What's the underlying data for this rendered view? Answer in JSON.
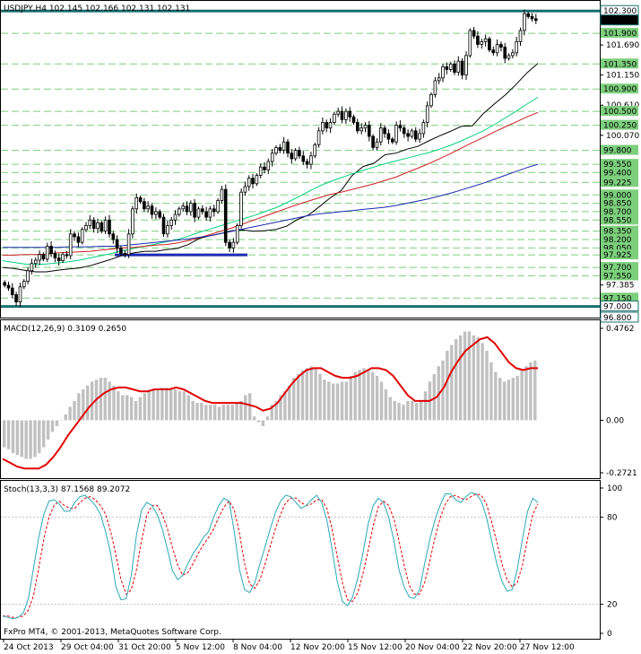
{
  "chart_data": [
    {
      "type": "candlestick",
      "header": "USDJPY,H4  102.145 102.166 102.131 102.131",
      "symbol": "USDJPY",
      "timeframe": "H4",
      "ohlc": {
        "open": 102.145,
        "high": 102.166,
        "low": 102.131,
        "close": 102.131
      },
      "ylim": [
        96.8,
        102.4
      ],
      "y_tick_labels": [
        {
          "value": 102.3,
          "text": "102.300",
          "style": "box"
        },
        {
          "value": 102.131,
          "text": "102.131",
          "style": "current"
        },
        {
          "value": 101.9,
          "text": "101.900",
          "style": "level"
        },
        {
          "value": 101.69,
          "text": "101.690",
          "style": "plain"
        },
        {
          "value": 101.35,
          "text": "101.350",
          "style": "level"
        },
        {
          "value": 101.15,
          "text": "101.150",
          "style": "plain"
        },
        {
          "value": 100.9,
          "text": "100.900",
          "style": "level"
        },
        {
          "value": 100.61,
          "text": "100.610",
          "style": "plain"
        },
        {
          "value": 100.5,
          "text": "100.500",
          "style": "level"
        },
        {
          "value": 100.25,
          "text": "100.250",
          "style": "level"
        },
        {
          "value": 100.07,
          "text": "100.070",
          "style": "plain"
        },
        {
          "value": 99.8,
          "text": "99.800",
          "style": "level"
        },
        {
          "value": 99.55,
          "text": "99.550",
          "style": "level"
        },
        {
          "value": 99.4,
          "text": "99.400",
          "style": "level"
        },
        {
          "value": 99.225,
          "text": "99.225",
          "style": "level"
        },
        {
          "value": 99.0,
          "text": "99.000",
          "style": "level"
        },
        {
          "value": 98.85,
          "text": "98.850",
          "style": "level"
        },
        {
          "value": 98.7,
          "text": "98.700",
          "style": "level"
        },
        {
          "value": 98.55,
          "text": "98.550",
          "style": "level"
        },
        {
          "value": 98.35,
          "text": "98.350",
          "style": "level"
        },
        {
          "value": 98.2,
          "text": "98.200",
          "style": "level"
        },
        {
          "value": 98.05,
          "text": "98.050",
          "style": "level"
        },
        {
          "value": 97.925,
          "text": "97.925",
          "style": "level"
        },
        {
          "value": 97.7,
          "text": "97.700",
          "style": "level"
        },
        {
          "value": 97.55,
          "text": "97.550",
          "style": "level"
        },
        {
          "value": 97.385,
          "text": "97.385",
          "style": "plain"
        },
        {
          "value": 97.15,
          "text": "97.150",
          "style": "level"
        },
        {
          "value": 97.0,
          "text": "97.000",
          "style": "box"
        },
        {
          "value": 96.8,
          "text": "96.800",
          "style": "box"
        }
      ],
      "dashed_levels": [
        101.9,
        101.35,
        100.9,
        100.5,
        100.25,
        99.8,
        99.55,
        99.4,
        99.225,
        99.0,
        98.85,
        98.7,
        98.55,
        98.35,
        98.2,
        98.05,
        97.925,
        97.7,
        97.55,
        97.15
      ],
      "solid_levels": [
        102.3,
        97.0
      ],
      "x_labels": [
        "24 Oct 2013",
        "29 Oct 04:00",
        "31 Oct 20:00",
        "5 Nov 12:00",
        "8 Nov 04:00",
        "12 Nov 20:00",
        "15 Nov 12:00",
        "20 Nov 04:00",
        "22 Nov 20:00",
        "27 Nov 12:00"
      ],
      "closes": [
        97.38,
        97.33,
        97.21,
        97.08,
        97.35,
        97.45,
        97.64,
        97.77,
        97.83,
        97.93,
        97.85,
        98.08,
        97.95,
        97.87,
        97.82,
        97.93,
        97.91,
        98.3,
        98.25,
        98.15,
        98.38,
        98.45,
        98.55,
        98.4,
        98.5,
        98.35,
        98.55,
        98.3,
        98.2,
        98.05,
        97.95,
        97.93,
        98.3,
        98.75,
        98.95,
        98.88,
        98.75,
        98.8,
        98.65,
        98.7,
        98.6,
        98.3,
        98.45,
        98.55,
        98.65,
        98.75,
        98.8,
        98.7,
        98.85,
        98.6,
        98.75,
        98.7,
        98.6,
        98.75,
        98.7,
        98.9,
        99.1,
        98.15,
        98.05,
        98.15,
        98.45,
        99.05,
        99.15,
        99.3,
        99.2,
        99.35,
        99.5,
        99.45,
        99.6,
        99.75,
        99.85,
        99.8,
        99.95,
        99.75,
        99.65,
        99.8,
        99.7,
        99.6,
        99.55,
        99.7,
        99.9,
        100.15,
        100.3,
        100.2,
        100.3,
        100.45,
        100.5,
        100.35,
        100.5,
        100.4,
        100.3,
        100.15,
        100.2,
        100.25,
        100.05,
        99.85,
        99.95,
        100.2,
        100.1,
        100.0,
        99.95,
        100.25,
        100.2,
        100.1,
        100.05,
        100.15,
        100.0,
        100.1,
        100.3,
        100.6,
        100.8,
        101.05,
        101.1,
        101.3,
        101.25,
        101.35,
        101.2,
        101.4,
        101.15,
        101.5,
        101.95,
        101.85,
        101.7,
        101.75,
        101.8,
        101.6,
        101.55,
        101.7,
        101.65,
        101.45,
        101.5,
        101.55,
        101.75,
        101.95,
        102.25,
        102.2,
        102.16,
        102.13
      ],
      "moving_averages": [
        {
          "color": "#000000",
          "values": [
            97.7,
            97.68,
            97.65,
            97.62,
            97.62,
            97.65,
            97.67,
            97.69,
            97.73,
            97.79,
            97.85,
            97.92,
            97.96,
            97.99,
            97.99,
            98.02,
            98.04,
            98.11,
            98.22,
            98.27,
            98.31,
            98.36,
            98.37,
            98.35,
            98.36,
            98.38,
            98.44,
            98.56,
            98.64,
            98.79,
            98.95,
            99.08,
            99.35,
            99.51,
            99.57,
            99.72,
            99.75,
            99.82,
            99.87,
            99.97,
            100.06,
            100.14,
            100.23,
            100.24,
            100.46,
            100.63,
            100.79,
            100.98,
            101.19,
            101.36
          ]
        },
        {
          "color": "#00d27a",
          "values": [
            97.82,
            97.79,
            97.76,
            97.75,
            97.76,
            97.78,
            97.8,
            97.83,
            97.87,
            97.91,
            97.95,
            98.0,
            98.04,
            98.08,
            98.12,
            98.16,
            98.2,
            98.26,
            98.33,
            98.39,
            98.45,
            98.51,
            98.57,
            98.63,
            98.7,
            98.77,
            98.86,
            98.96,
            99.06,
            99.16,
            99.24,
            99.31,
            99.38,
            99.44,
            99.5,
            99.56,
            99.61,
            99.66,
            99.71,
            99.76,
            99.82,
            99.89,
            99.97,
            100.06,
            100.15,
            100.26,
            100.38,
            100.5,
            100.63,
            100.75
          ]
        },
        {
          "color": "#cc2020",
          "values": [
            97.92,
            97.92,
            97.93,
            97.93,
            97.94,
            97.96,
            97.97,
            97.98,
            97.99,
            98.01,
            98.03,
            98.05,
            98.06,
            98.08,
            98.1,
            98.11,
            98.14,
            98.18,
            98.23,
            98.29,
            98.35,
            98.41,
            98.48,
            98.55,
            98.62,
            98.69,
            98.76,
            98.83,
            98.89,
            98.95,
            99.01,
            99.05,
            99.1,
            99.15,
            99.2,
            99.26,
            99.32,
            99.4,
            99.48,
            99.56,
            99.65,
            99.74,
            99.84,
            99.94,
            100.03,
            100.13,
            100.22,
            100.31,
            100.4,
            100.48
          ]
        },
        {
          "color": "#1a2ab0",
          "values": [
            98.06,
            98.06,
            98.06,
            98.06,
            98.06,
            98.06,
            98.07,
            98.07,
            98.07,
            98.08,
            98.08,
            98.09,
            98.11,
            98.13,
            98.15,
            98.17,
            98.19,
            98.21,
            98.24,
            98.27,
            98.31,
            98.35,
            98.39,
            98.43,
            98.47,
            98.51,
            98.55,
            98.59,
            98.63,
            98.66,
            98.68,
            98.7,
            98.72,
            98.74,
            98.76,
            98.78,
            98.81,
            98.85,
            98.89,
            98.93,
            98.98,
            99.03,
            99.09,
            99.15,
            99.21,
            99.28,
            99.35,
            99.42,
            99.49,
            99.55
          ]
        }
      ],
      "support_line": {
        "value": 97.925,
        "color": "#1a2ab0"
      }
    },
    {
      "type": "bar",
      "label": "MACD(12,26,9) 0.3109 0.2650",
      "ylim": [
        -0.2721,
        0.4762
      ],
      "y_tick_labels": [
        "0.4762",
        "0.00",
        "-0.2721"
      ],
      "histogram": [
        -0.14,
        -0.15,
        -0.17,
        -0.18,
        -0.19,
        -0.2,
        -0.2,
        -0.19,
        -0.17,
        -0.14,
        -0.1,
        -0.06,
        -0.03,
        0.0,
        0.03,
        0.07,
        0.1,
        0.14,
        0.16,
        0.18,
        0.2,
        0.21,
        0.22,
        0.22,
        0.2,
        0.18,
        0.15,
        0.13,
        0.13,
        0.12,
        0.1,
        0.12,
        0.14,
        0.15,
        0.16,
        0.16,
        0.17,
        0.17,
        0.16,
        0.16,
        0.15,
        0.15,
        0.13,
        0.1,
        0.09,
        0.09,
        0.08,
        0.08,
        0.08,
        0.07,
        0.08,
        0.08,
        0.08,
        0.09,
        0.1,
        0.13,
        0.14,
        0.02,
        -0.01,
        -0.03,
        0.02,
        0.08,
        0.1,
        0.13,
        0.15,
        0.18,
        0.22,
        0.24,
        0.26,
        0.27,
        0.28,
        0.27,
        0.24,
        0.21,
        0.2,
        0.19,
        0.19,
        0.2,
        0.2,
        0.23,
        0.25,
        0.26,
        0.27,
        0.26,
        0.25,
        0.23,
        0.2,
        0.16,
        0.12,
        0.1,
        0.09,
        0.08,
        0.1,
        0.1,
        0.09,
        0.1,
        0.15,
        0.2,
        0.24,
        0.28,
        0.31,
        0.36,
        0.39,
        0.42,
        0.44,
        0.46,
        0.46,
        0.44,
        0.43,
        0.4,
        0.36,
        0.3,
        0.25,
        0.22,
        0.2,
        0.21,
        0.22,
        0.23,
        0.26,
        0.28,
        0.3,
        0.31
      ],
      "signal": [
        -0.2,
        -0.22,
        -0.24,
        -0.25,
        -0.25,
        -0.25,
        -0.23,
        -0.19,
        -0.14,
        -0.08,
        -0.03,
        0.02,
        0.07,
        0.11,
        0.14,
        0.16,
        0.17,
        0.17,
        0.16,
        0.15,
        0.15,
        0.16,
        0.16,
        0.16,
        0.17,
        0.16,
        0.14,
        0.12,
        0.1,
        0.09,
        0.09,
        0.09,
        0.09,
        0.09,
        0.08,
        0.07,
        0.05,
        0.06,
        0.09,
        0.14,
        0.19,
        0.23,
        0.26,
        0.27,
        0.27,
        0.25,
        0.23,
        0.22,
        0.22,
        0.23,
        0.25,
        0.27,
        0.27,
        0.26,
        0.23,
        0.18,
        0.13,
        0.1,
        0.1,
        0.1,
        0.12,
        0.17,
        0.25,
        0.31,
        0.36,
        0.39,
        0.42,
        0.43,
        0.4,
        0.35,
        0.3,
        0.27,
        0.26,
        0.27,
        0.27
      ],
      "series_colors": {
        "histogram": "#c0c0c0",
        "signal": "#e00000"
      }
    },
    {
      "type": "line",
      "label": "Stoch(13,3,3) 87.1568 89.2072",
      "ylim": [
        0,
        100
      ],
      "y_tick_labels": [
        "100",
        "80",
        "20",
        "0"
      ],
      "level_lines": [
        80,
        20
      ],
      "main": [
        12,
        11,
        10,
        11,
        14,
        24,
        45,
        66,
        82,
        91,
        92,
        89,
        84,
        84,
        90,
        94,
        95,
        92,
        88,
        82,
        70,
        55,
        32,
        23,
        24,
        40,
        68,
        85,
        90,
        88,
        82,
        72,
        58,
        43,
        37,
        40,
        48,
        55,
        60,
        66,
        70,
        80,
        88,
        93,
        91,
        70,
        44,
        30,
        28,
        35,
        48,
        60,
        72,
        83,
        91,
        95,
        94,
        90,
        86,
        88,
        92,
        95,
        90,
        78,
        58,
        36,
        22,
        19,
        25,
        38,
        55,
        75,
        88,
        93,
        90,
        80,
        64,
        44,
        32,
        25,
        24,
        30,
        48,
        65,
        78,
        88,
        96,
        96,
        92,
        90,
        94,
        97,
        96,
        91,
        80,
        64,
        48,
        36,
        29,
        30,
        44,
        65,
        84,
        93,
        90
      ],
      "signal": [
        12,
        12,
        11,
        11,
        12,
        16,
        26,
        45,
        65,
        80,
        88,
        91,
        88,
        86,
        86,
        90,
        93,
        94,
        92,
        88,
        82,
        70,
        54,
        37,
        27,
        30,
        44,
        64,
        81,
        88,
        88,
        82,
        72,
        59,
        47,
        40,
        42,
        48,
        55,
        61,
        66,
        72,
        80,
        87,
        91,
        85,
        69,
        48,
        34,
        31,
        37,
        48,
        60,
        72,
        82,
        90,
        93,
        93,
        90,
        88,
        89,
        92,
        92,
        86,
        72,
        53,
        35,
        23,
        22,
        28,
        41,
        57,
        74,
        87,
        91,
        88,
        79,
        64,
        47,
        33,
        27,
        27,
        35,
        50,
        66,
        79,
        89,
        94,
        95,
        93,
        92,
        94,
        96,
        95,
        89,
        77,
        63,
        48,
        37,
        32,
        35,
        47,
        65,
        82,
        89
      ]
    }
  ],
  "footer": {
    "copyright": "FxPro MT4, © 2001-2013, MetaQuotes Software Corp."
  }
}
